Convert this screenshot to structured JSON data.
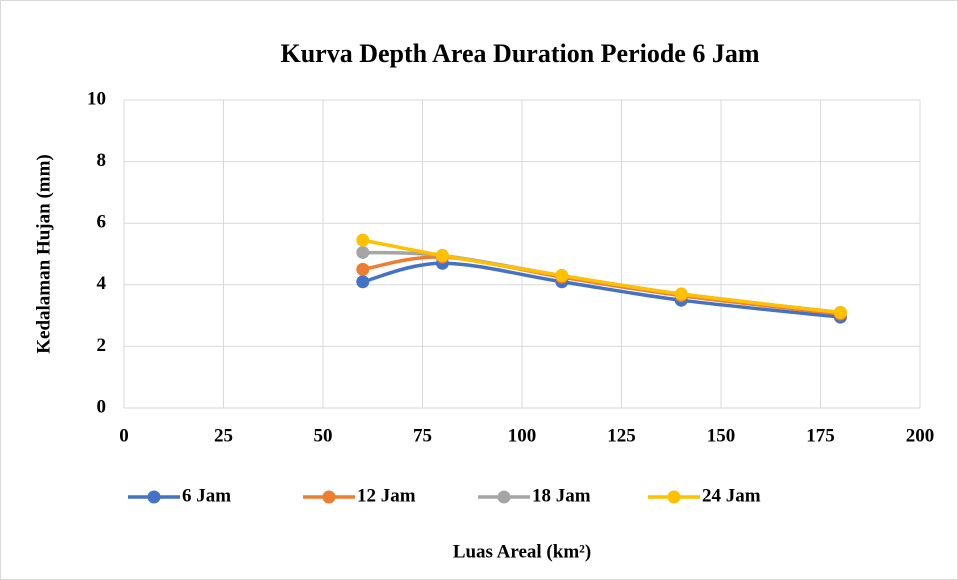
{
  "chart_data": {
    "type": "line",
    "title": "Kurva Depth Area Duration Periode 6 Jam",
    "xlabel": "Luas Areal (km²)",
    "ylabel": "Kedalaman Hujan (mm)",
    "x": [
      60,
      80,
      110,
      140,
      180
    ],
    "series": [
      {
        "name": "6 Jam",
        "color": "#4472c4",
        "values": [
          4.1,
          4.7,
          4.1,
          3.5,
          2.95
        ]
      },
      {
        "name": "12 Jam",
        "color": "#ed7d31",
        "values": [
          4.5,
          4.9,
          4.25,
          3.65,
          3.05
        ]
      },
      {
        "name": "18 Jam",
        "color": "#a5a5a5",
        "values": [
          5.05,
          4.95,
          4.3,
          3.7,
          3.1
        ]
      },
      {
        "name": "24 Jam",
        "color": "#ffc000",
        "values": [
          5.45,
          4.95,
          4.3,
          3.7,
          3.1
        ]
      }
    ],
    "xlim": [
      0,
      200
    ],
    "xticks": [
      0,
      25,
      50,
      75,
      100,
      125,
      150,
      175,
      200
    ],
    "ylim": [
      0,
      10
    ],
    "yticks": [
      0,
      2,
      4,
      6,
      8,
      10
    ],
    "grid": true,
    "smooth": true,
    "legend": "bottom"
  }
}
